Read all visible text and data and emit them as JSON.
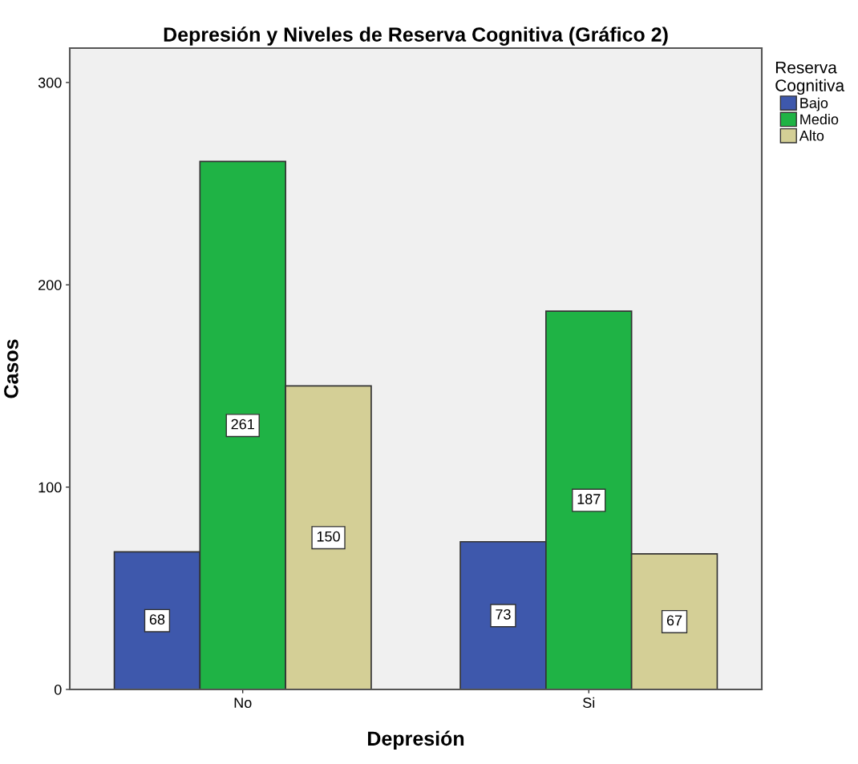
{
  "chart_data": {
    "type": "bar",
    "title": "Depresión y Niveles de Reserva Cognitiva (Gráfico 2)",
    "xlabel": "Depresión",
    "ylabel": "Casos",
    "legend_title": "Reserva\nCognitiva",
    "categories": [
      "No",
      "Si"
    ],
    "series": [
      {
        "name": "Bajo",
        "color": "#3e58ac",
        "values": [
          68,
          73
        ]
      },
      {
        "name": "Medio",
        "color": "#1fb345",
        "values": [
          261,
          187
        ]
      },
      {
        "name": "Alto",
        "color": "#d4cf96",
        "values": [
          150,
          67
        ]
      }
    ],
    "ylim": [
      0,
      317
    ],
    "yticks": [
      0,
      100,
      200,
      300
    ],
    "grid": false,
    "legend": "top right",
    "data_labels": true
  }
}
